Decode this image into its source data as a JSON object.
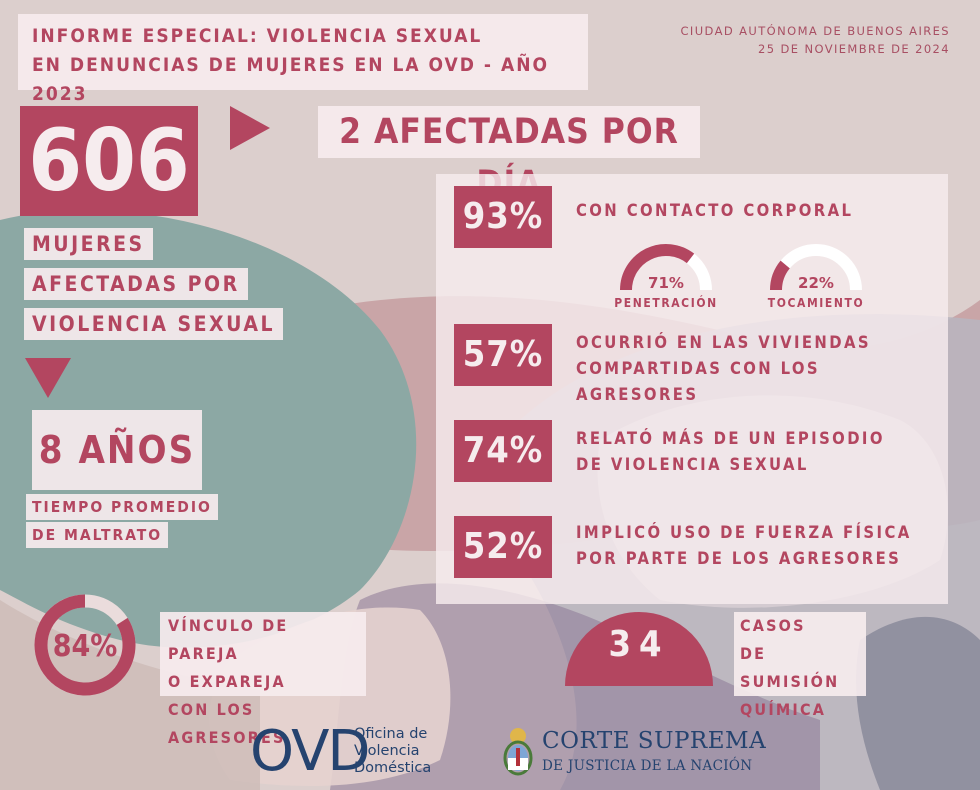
{
  "header": {
    "line1": "INFORME ESPECIAL: VIOLENCIA SEXUAL",
    "line2": "EN DENUNCIAS DE MUJERES EN LA OVD - AÑO 2023",
    "location": "CIUDAD AUTÓNOMA DE BUENOS AIRES",
    "date": "25 DE NOVIEMBRE DE 2024"
  },
  "colors": {
    "accent": "#b34660",
    "background": "#dccfcd",
    "panel": "#f6ecee",
    "teal": "#8ca8a4",
    "navy": "#25436f"
  },
  "main_stat": {
    "value": "606",
    "lines": [
      "MUJERES",
      "AFECTADAS POR",
      "VIOLENCIA SEXUAL"
    ]
  },
  "per_day": {
    "text": "2 AFECTADAS POR DÍA"
  },
  "average": {
    "value": "8 AÑOS",
    "lines": [
      "TIEMPO PROMEDIO",
      "DE MALTRATO"
    ]
  },
  "stats": [
    {
      "pct": "93%",
      "lines": [
        "CON CONTACTO CORPORAL"
      ]
    },
    {
      "pct": "57%",
      "lines": [
        "OCURRIÓ EN LAS VIVIENDAS",
        "COMPARTIDAS CON LOS AGRESORES"
      ]
    },
    {
      "pct": "74%",
      "lines": [
        "RELATÓ MÁS DE UN EPISODIO",
        "DE VIOLENCIA SEXUAL"
      ]
    },
    {
      "pct": "52%",
      "lines": [
        "IMPLICÓ USO DE FUERZA FÍSICA",
        "POR PARTE DE LOS AGRESORES"
      ]
    }
  ],
  "gauges": [
    {
      "value_label": "71%",
      "fraction": 0.71,
      "label": "PENETRACIÓN"
    },
    {
      "value_label": "22%",
      "fraction": 0.22,
      "label": "TOCAMIENTO"
    }
  ],
  "partner": {
    "value_label": "84%",
    "fraction": 0.84,
    "lines": [
      "VÍNCULO DE PAREJA",
      "O EXPAREJA",
      "CON LOS AGRESORES"
    ]
  },
  "chemical": {
    "value": "34",
    "lines": [
      "CASOS",
      "DE SUMISIÓN",
      "QUÍMICA"
    ]
  },
  "logos": {
    "ovd_letters": "OVD",
    "ovd_lines": [
      "Oficina de",
      "Violencia",
      "Doméstica"
    ],
    "corte_line1": "CORTE SUPREMA",
    "corte_line2": "DE JUSTICIA DE LA NACIÓN"
  }
}
